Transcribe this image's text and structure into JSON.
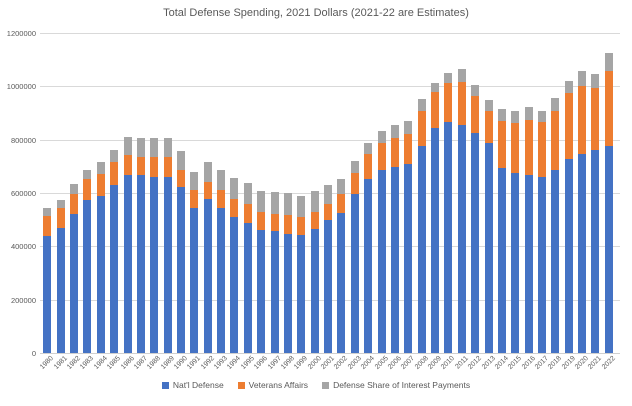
{
  "chart_data": {
    "type": "bar",
    "stacked": true,
    "title": "Total Defense Spending, 2021 Dollars (2021-22 are Estimates)",
    "xlabel": "",
    "ylabel": "",
    "ylim": [
      0,
      1200000
    ],
    "ytick_interval": 200000,
    "yticks": [
      0,
      200000,
      400000,
      600000,
      800000,
      1000000,
      1200000
    ],
    "grid": true,
    "legend_position": "bottom",
    "categories": [
      1980,
      1981,
      1982,
      1983,
      1984,
      1985,
      1986,
      1987,
      1988,
      1989,
      1990,
      1991,
      1992,
      1993,
      1994,
      1995,
      1996,
      1997,
      1998,
      1999,
      2000,
      2001,
      2002,
      2003,
      2004,
      2005,
      2006,
      2007,
      2008,
      2009,
      2010,
      2011,
      2012,
      2013,
      2014,
      2015,
      2016,
      2017,
      2018,
      2019,
      2020,
      2021,
      2022
    ],
    "series": [
      {
        "name": "Nat'l Defense",
        "color": "#4472C4",
        "values": [
          440000,
          467000,
          520000,
          575000,
          588000,
          630000,
          668000,
          666000,
          661000,
          659000,
          621000,
          543000,
          576000,
          544000,
          511000,
          489000,
          461000,
          458000,
          445000,
          443000,
          464000,
          497000,
          524000,
          596000,
          651000,
          686000,
          696000,
          710000,
          778000,
          845000,
          865000,
          855000,
          824000,
          786000,
          693000,
          675000,
          668000,
          661000,
          686000,
          727000,
          746000,
          762000,
          776000
        ]
      },
      {
        "name": "Veterans Affairs",
        "color": "#ED7D31",
        "values": [
          72000,
          75000,
          77000,
          79000,
          83000,
          85000,
          74000,
          70000,
          73000,
          75000,
          65000,
          68000,
          66000,
          68000,
          65000,
          68000,
          69000,
          62000,
          71000,
          68000,
          66000,
          62000,
          72000,
          80000,
          94000,
          103000,
          112000,
          110000,
          130000,
          132000,
          146000,
          163000,
          140000,
          123000,
          177000,
          186000,
          206000,
          207000,
          222000,
          248000,
          255000,
          230000,
          282000
        ]
      },
      {
        "name": "Defense Share of Interest Payments",
        "color": "#A5A5A5",
        "values": [
          30000,
          31000,
          38000,
          34000,
          45000,
          48000,
          69000,
          72000,
          72000,
          72000,
          72000,
          69000,
          75000,
          76000,
          79000,
          79000,
          76000,
          84000,
          83000,
          78000,
          79000,
          71000,
          55000,
          45000,
          41000,
          45000,
          47000,
          50000,
          45000,
          35000,
          41000,
          46000,
          41000,
          41000,
          46000,
          45000,
          48000,
          41000,
          47000,
          45000,
          57000,
          54000,
          66000
        ]
      }
    ]
  },
  "style": {
    "gridline_color": "#d9d9d9",
    "text_color": "#595959",
    "background": "#ffffff"
  }
}
